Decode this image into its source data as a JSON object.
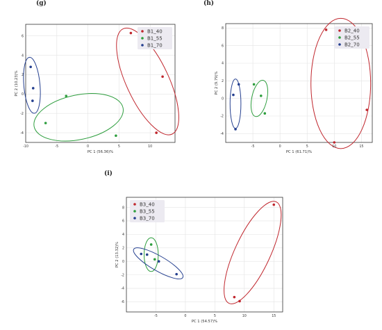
{
  "panel_letters": [
    "(g)",
    "(h)",
    "(i)"
  ],
  "chart_data": [
    {
      "type": "scatter",
      "xlabel": "PC 1 (56.36)%",
      "ylabel": "PC 2 (10.23)%",
      "xlim": [
        -10,
        14
      ],
      "ylim": [
        -5,
        7.2
      ],
      "xticks": [
        -10,
        -5,
        0,
        5,
        10
      ],
      "yticks": [
        -4,
        -2,
        0,
        2,
        4,
        6
      ],
      "grid": true,
      "legend": "top-right",
      "series": [
        {
          "name": "B1_40",
          "color": "#c0262d",
          "points": [
            [
              6.9,
              6.3
            ],
            [
              12.0,
              1.8
            ],
            [
              11.0,
              -4.0
            ]
          ],
          "ellipse": {
            "cx": 9.6,
            "cy": 1.3,
            "rx": 3.4,
            "ry": 6.0,
            "angle": -25
          }
        },
        {
          "name": "B1_55",
          "color": "#2e9e3e",
          "points": [
            [
              -3.5,
              -0.2
            ],
            [
              -6.8,
              -3.0
            ],
            [
              4.5,
              -4.3
            ]
          ],
          "ellipse": {
            "cx": -1.5,
            "cy": -2.4,
            "rx": 7.3,
            "ry": 2.3,
            "angle": -12
          }
        },
        {
          "name": "B1_70",
          "color": "#243f8f",
          "points": [
            [
              -9.2,
              2.8
            ],
            [
              -8.8,
              0.6
            ],
            [
              -8.9,
              -0.7
            ]
          ],
          "ellipse": {
            "cx": -9.0,
            "cy": 0.9,
            "rx": 1.3,
            "ry": 2.9,
            "angle": -5
          }
        }
      ]
    },
    {
      "type": "scatter",
      "xlabel": "PC 1 (61.71)%",
      "ylabel": "PC 2 (9.79)%",
      "xlim": [
        -10,
        17
      ],
      "ylim": [
        -5,
        8.5
      ],
      "xticks": [
        -5,
        0,
        5,
        10,
        15
      ],
      "yticks": [
        -4,
        -2,
        0,
        2,
        4,
        6,
        8
      ],
      "grid": true,
      "legend": "top-right",
      "series": [
        {
          "name": "B2_40",
          "color": "#c0262d",
          "points": [
            [
              8.5,
              7.8
            ],
            [
              16.0,
              -1.3
            ],
            [
              10.0,
              -5.0
            ]
          ],
          "ellipse": {
            "cx": 11.2,
            "cy": 1.7,
            "rx": 5.5,
            "ry": 7.4,
            "angle": 0
          }
        },
        {
          "name": "B2_55",
          "color": "#2e9e3e",
          "points": [
            [
              -4.8,
              1.6
            ],
            [
              -3.5,
              0.3
            ],
            [
              -2.8,
              -1.7
            ]
          ],
          "ellipse": {
            "cx": -3.8,
            "cy": 0.0,
            "rx": 1.4,
            "ry": 2.1,
            "angle": 12
          }
        },
        {
          "name": "B2_70",
          "color": "#243f8f",
          "points": [
            [
              -8.6,
              0.4
            ],
            [
              -7.6,
              1.6
            ],
            [
              -8.2,
              -3.5
            ]
          ],
          "ellipse": {
            "cx": -8.2,
            "cy": -0.6,
            "rx": 1.0,
            "ry": 2.8,
            "angle": 0
          }
        }
      ]
    },
    {
      "type": "scatter",
      "xlabel": "PC 1 (54.57)%",
      "ylabel": "PC 2 (13.32)%",
      "xlim": [
        -10,
        16.5
      ],
      "ylim": [
        -7.5,
        9.5
      ],
      "xticks": [
        -5,
        0,
        5,
        10,
        15
      ],
      "yticks": [
        -6,
        -4,
        -2,
        0,
        2,
        4,
        6,
        8
      ],
      "grid": true,
      "legend": "top-left",
      "series": [
        {
          "name": "B3_40",
          "color": "#c0262d",
          "points": [
            [
              15.0,
              8.4
            ],
            [
              8.3,
              -5.3
            ],
            [
              9.2,
              -5.9
            ]
          ],
          "ellipse": {
            "cx": 11.4,
            "cy": 1.3,
            "rx": 3.0,
            "ry": 8.3,
            "angle": 25
          }
        },
        {
          "name": "B3_55",
          "color": "#2e9e3e",
          "points": [
            [
              -5.8,
              2.5
            ],
            [
              -5.2,
              0.3
            ],
            [
              -6.5,
              1.0
            ]
          ],
          "ellipse": {
            "cx": -5.8,
            "cy": 1.0,
            "rx": 1.2,
            "ry": 2.5,
            "angle": 0
          }
        },
        {
          "name": "B3_70",
          "color": "#243f8f",
          "points": [
            [
              -7.5,
              1.1
            ],
            [
              -6.5,
              1.0
            ],
            [
              -4.5,
              0.0
            ],
            [
              -1.5,
              -1.9
            ]
          ],
          "ellipse": {
            "cx": -4.6,
            "cy": -0.3,
            "rx": 4.8,
            "ry": 1.1,
            "angle": 30
          }
        }
      ]
    }
  ]
}
